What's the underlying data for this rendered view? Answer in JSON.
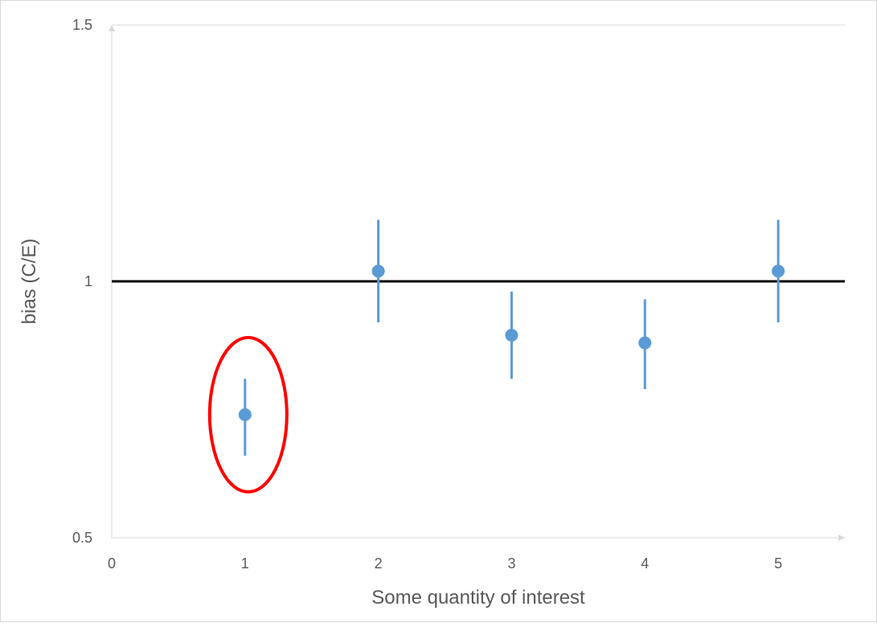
{
  "chart_data": {
    "type": "scatter",
    "title": "",
    "xlabel": "Some quantity of interest",
    "ylabel": "bias (C/E)",
    "xlim": [
      0,
      5.5
    ],
    "ylim": [
      0.5,
      1.5
    ],
    "x_ticks": [
      "0",
      "1",
      "2",
      "3",
      "4",
      "5"
    ],
    "y_ticks": [
      "0.5",
      "1",
      "1.5"
    ],
    "grid": false,
    "series": [
      {
        "color": "#5b9bd5",
        "points": [
          {
            "x": 1,
            "y": 0.74,
            "err_low": 0.66,
            "err_high": 0.81
          },
          {
            "x": 2,
            "y": 1.02,
            "err_low": 0.92,
            "err_high": 1.12
          },
          {
            "x": 3,
            "y": 0.895,
            "err_low": 0.81,
            "err_high": 0.98
          },
          {
            "x": 4,
            "y": 0.88,
            "err_low": 0.79,
            "err_high": 0.965
          },
          {
            "x": 5,
            "y": 1.02,
            "err_low": 0.92,
            "err_high": 1.12
          }
        ]
      }
    ],
    "reference_line": {
      "y": 1.0,
      "color": "#000000"
    },
    "highlight": {
      "x": 1,
      "y": 0.74,
      "shape": "ellipse",
      "color": "#ff0000"
    }
  }
}
